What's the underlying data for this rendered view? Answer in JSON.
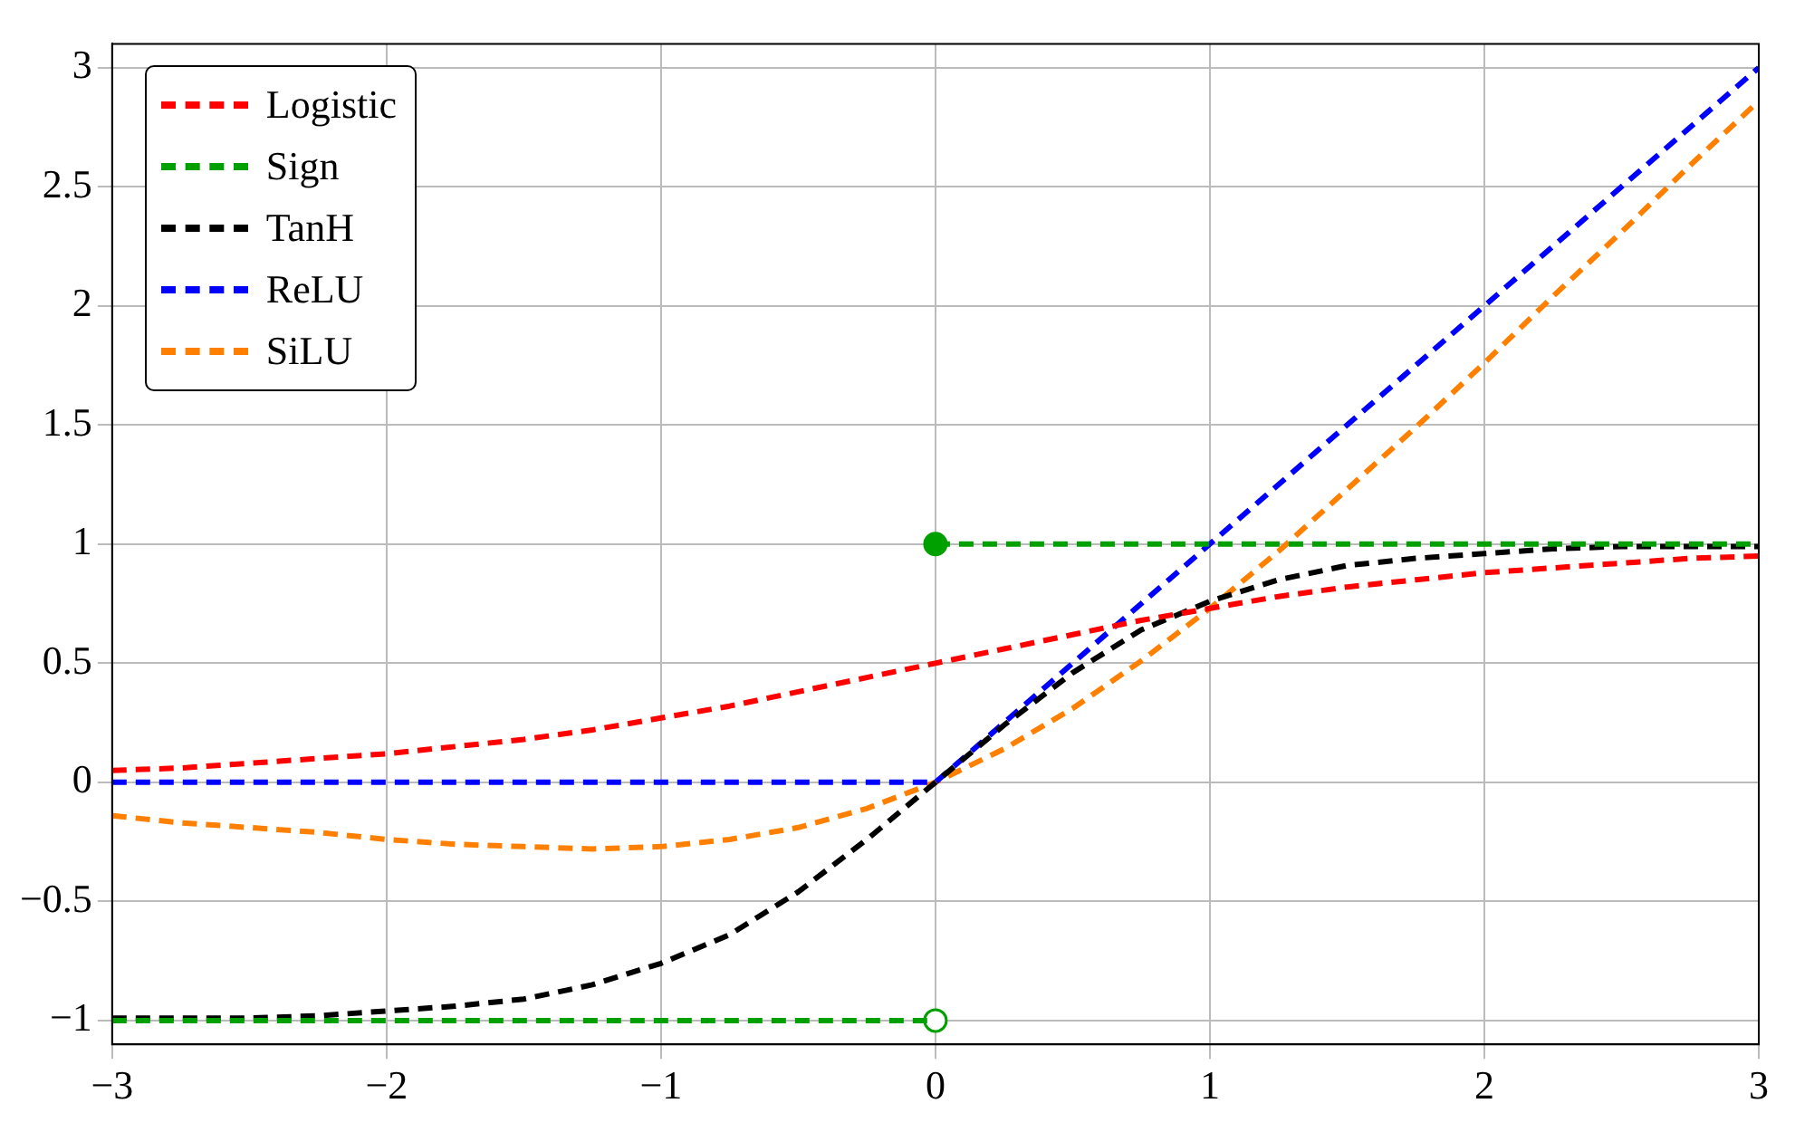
{
  "chart_data": {
    "type": "line",
    "xlim": [
      -3,
      3
    ],
    "ylim": [
      -1.1,
      3.1
    ],
    "xticks": [
      {
        "value": -3,
        "label": "−3"
      },
      {
        "value": -2,
        "label": "−2"
      },
      {
        "value": -1,
        "label": "−1"
      },
      0,
      1,
      2,
      3
    ],
    "yticks": [
      {
        "value": -1,
        "label": "−1"
      },
      {
        "value": -0.5,
        "label": "−0.5"
      },
      0,
      0.5,
      1,
      1.5,
      2,
      2.5,
      3
    ],
    "grid": true,
    "legend": "top left",
    "line_style": "dashed",
    "marker": "none",
    "x": [
      -3,
      -2.75,
      -2.5,
      -2.25,
      -2,
      -1.75,
      -1.5,
      -1.25,
      -1,
      -0.75,
      -0.5,
      -0.25,
      0,
      0.25,
      0.5,
      0.75,
      1,
      1.25,
      1.5,
      1.75,
      2,
      2.25,
      2.5,
      2.75,
      3
    ],
    "series": [
      {
        "name": "Logistic",
        "color": "#ff0000",
        "values": [
          0.05,
          0.06,
          0.08,
          0.1,
          0.12,
          0.15,
          0.18,
          0.22,
          0.27,
          0.32,
          0.38,
          0.44,
          0.5,
          0.56,
          0.62,
          0.68,
          0.73,
          0.78,
          0.82,
          0.85,
          0.88,
          0.9,
          0.92,
          0.94,
          0.95
        ]
      },
      {
        "name": "Sign",
        "color": "#00a000",
        "x": [
          -3,
          0,
          null,
          0,
          3
        ],
        "values": [
          -1,
          -1,
          null,
          1,
          1
        ]
      },
      {
        "name": "TanH",
        "color": "#000000",
        "values": [
          -0.99,
          -0.99,
          -0.99,
          -0.98,
          -0.96,
          -0.94,
          -0.91,
          -0.85,
          -0.76,
          -0.64,
          -0.46,
          -0.24,
          0,
          0.24,
          0.46,
          0.64,
          0.76,
          0.85,
          0.91,
          0.94,
          0.96,
          0.98,
          0.99,
          0.99,
          0.99
        ]
      },
      {
        "name": "ReLU",
        "color": "#0000ff",
        "x": [
          -3,
          0,
          3
        ],
        "values": [
          0,
          0,
          3
        ]
      },
      {
        "name": "SiLU",
        "color": "#ff8000",
        "values": [
          -0.14,
          -0.17,
          -0.19,
          -0.21,
          -0.24,
          -0.26,
          -0.27,
          -0.28,
          -0.27,
          -0.24,
          -0.19,
          -0.11,
          0,
          0.14,
          0.31,
          0.51,
          0.73,
          0.97,
          1.23,
          1.49,
          1.76,
          2.04,
          2.31,
          2.59,
          2.86
        ]
      },
      {
        "type": "scatter",
        "color": "#00a000",
        "x": [
          0,
          0
        ],
        "values": [
          1,
          -1
        ],
        "colors": [
          "#00a000",
          "#ffffff"
        ],
        "marker": "circle"
      }
    ]
  }
}
